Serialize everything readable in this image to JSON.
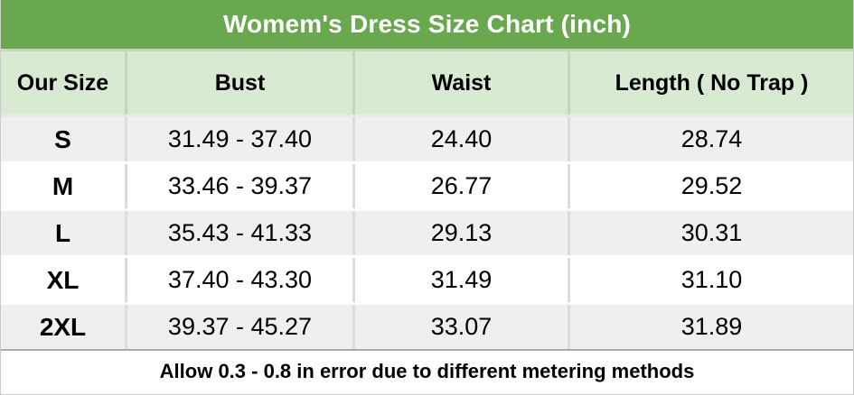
{
  "title": "Womem's Dress Size Chart (inch)",
  "header": {
    "columns": [
      "Our Size",
      "Bust",
      "Waist",
      "Length ( No Trap )"
    ]
  },
  "rows": [
    {
      "size": "S",
      "bust": "31.49 - 37.40",
      "waist": "24.40",
      "length": "28.74"
    },
    {
      "size": "M",
      "bust": "33.46 - 39.37",
      "waist": "26.77",
      "length": "29.52"
    },
    {
      "size": "L",
      "bust": "35.43 - 41.33",
      "waist": "29.13",
      "length": "30.31"
    },
    {
      "size": "XL",
      "bust": "37.40 - 43.30",
      "waist": "31.49",
      "length": "31.10"
    },
    {
      "size": "2XL",
      "bust": "39.37 - 45.27",
      "waist": "33.07",
      "length": "31.89"
    }
  ],
  "footnote": "Allow 0.3 - 0.8 in error due to different metering methods",
  "colors": {
    "title_bg": "#6aa84f",
    "title_text": "#ffffff",
    "header_bg": "#d9ead3",
    "header_grid_line": "#c6d5bd",
    "stripe_row_bg": "#efefef",
    "plain_row_bg": "#ffffff",
    "grid_line": "#dcdcdc",
    "footer_divider": "#ababab",
    "text": "#000000"
  },
  "chart_data": {
    "type": "table",
    "title": "Womem's Dress Size Chart (inch)",
    "columns": [
      "Our Size",
      "Bust",
      "Waist",
      "Length ( No Trap )"
    ],
    "rows": [
      [
        "S",
        "31.49 - 37.40",
        "24.40",
        "28.74"
      ],
      [
        "M",
        "33.46 - 39.37",
        "26.77",
        "29.52"
      ],
      [
        "L",
        "35.43 - 41.33",
        "29.13",
        "30.31"
      ],
      [
        "XL",
        "37.40 - 43.30",
        "31.49",
        "31.10"
      ],
      [
        "2XL",
        "39.37 - 45.27",
        "33.07",
        "31.89"
      ]
    ],
    "footnote": "Allow 0.3 - 0.8 in error due to different metering methods",
    "layout": {
      "striped_rows": true,
      "header_fill": "light-green",
      "title_fill": "green",
      "unit": "inch"
    }
  }
}
